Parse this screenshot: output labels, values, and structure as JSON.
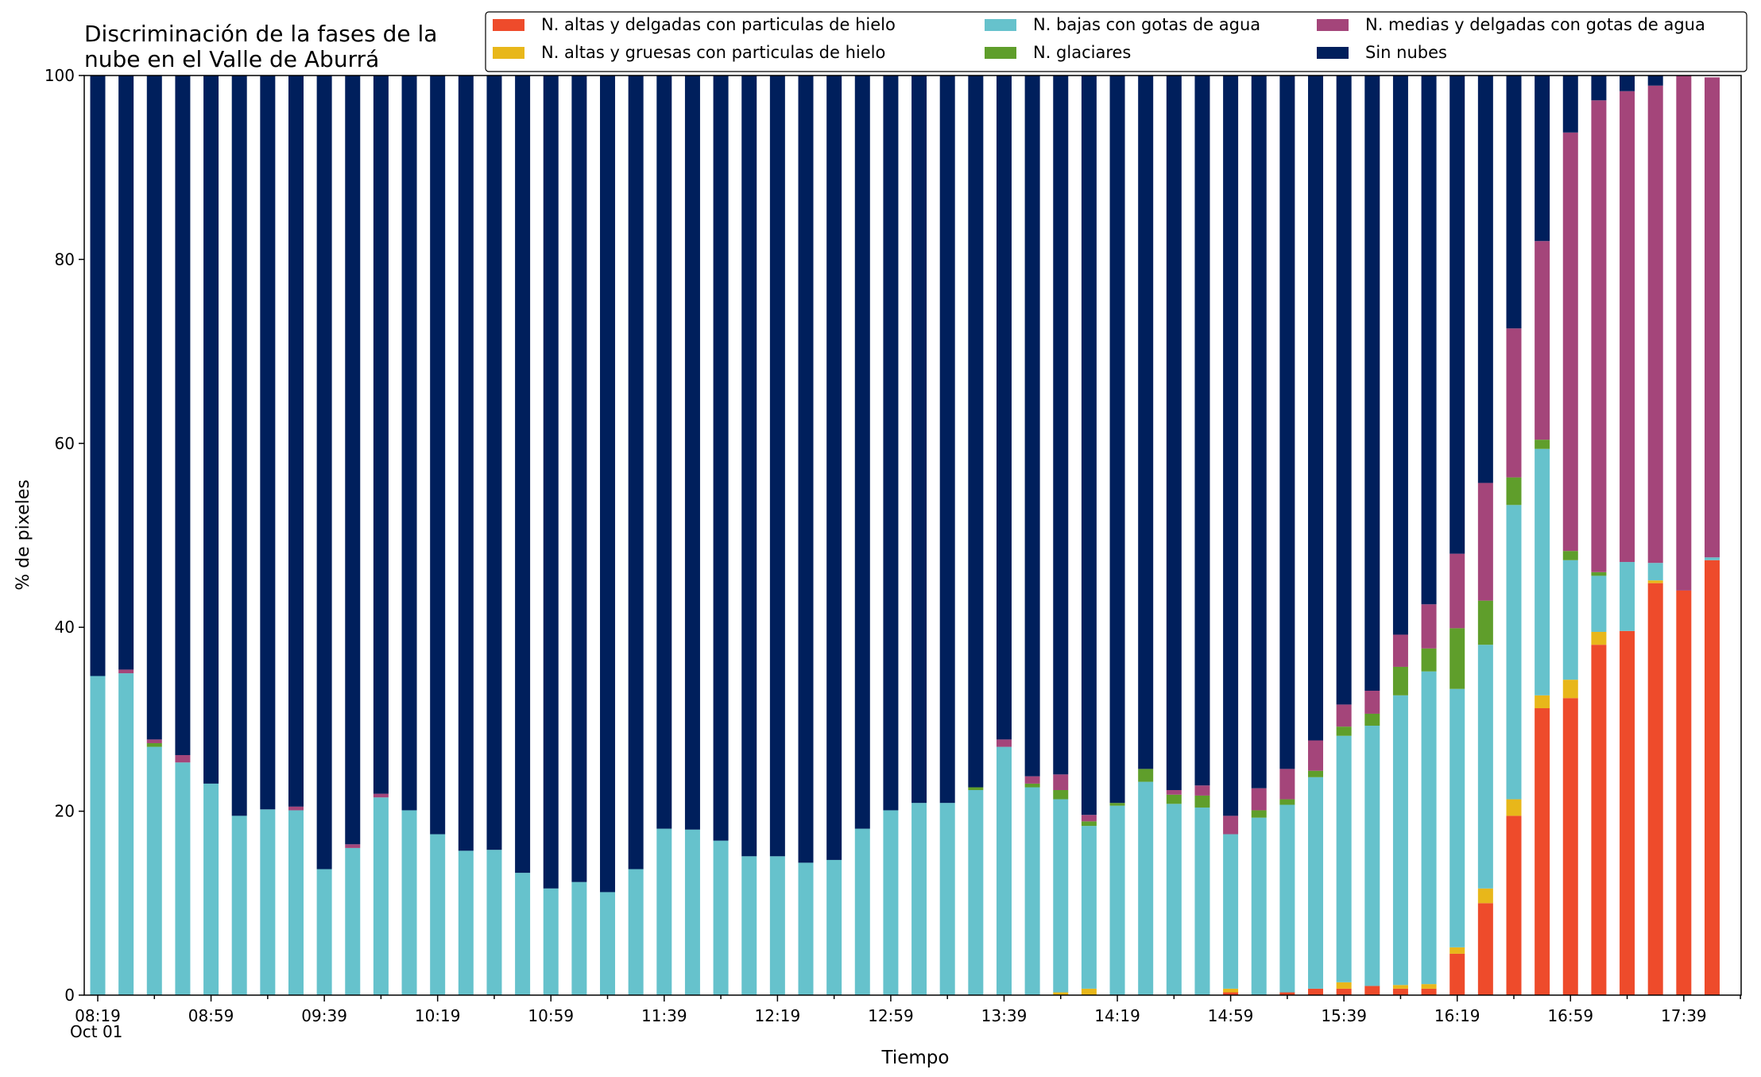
{
  "chart_data": {
    "type": "bar",
    "stacked": true,
    "title_lines": [
      "Discriminación de la fases de la",
      "nube en el Valle de Aburrá"
    ],
    "xlabel": "Tiempo",
    "ylabel": "% de pixeles",
    "ylim": [
      0,
      100
    ],
    "yticks": [
      0,
      20,
      40,
      60,
      80,
      100
    ],
    "grid": false,
    "legend_position": "top-right",
    "x_tick_labels": [
      "08:19",
      "08:59",
      "09:39",
      "10:19",
      "10:59",
      "11:39",
      "12:19",
      "12:59",
      "13:39",
      "14:19",
      "14:59",
      "15:39",
      "16:19",
      "16:59",
      "17:39"
    ],
    "x_date_label": "Oct 01",
    "categories": [
      "08:19",
      "08:29",
      "08:39",
      "08:49",
      "08:59",
      "09:09",
      "09:19",
      "09:29",
      "09:39",
      "09:49",
      "09:59",
      "10:09",
      "10:19",
      "10:29",
      "10:39",
      "10:49",
      "10:59",
      "11:09",
      "11:19",
      "11:29",
      "11:39",
      "11:49",
      "11:59",
      "12:09",
      "12:19",
      "12:29",
      "12:39",
      "12:49",
      "12:59",
      "13:09",
      "13:19",
      "13:29",
      "13:39",
      "13:49",
      "13:59",
      "14:09",
      "14:19",
      "14:29",
      "14:39",
      "14:49",
      "14:59",
      "15:09",
      "15:19",
      "15:29",
      "15:39",
      "15:49",
      "15:59",
      "16:09",
      "16:19",
      "16:29",
      "16:39",
      "16:49",
      "16:59",
      "17:09",
      "17:19",
      "17:29",
      "17:39",
      "17:49"
    ],
    "series": [
      {
        "name": "N. altas y delgadas con particulas de hielo",
        "color": "#ee4b2b",
        "values": [
          0,
          0,
          0,
          0,
          0,
          0,
          0,
          0,
          0,
          0,
          0,
          0,
          0,
          0,
          0,
          0,
          0,
          0,
          0,
          0,
          0,
          0,
          0,
          0,
          0,
          0,
          0,
          0,
          0,
          0,
          0,
          0,
          0,
          0,
          0,
          0,
          0,
          0,
          0,
          0,
          0.3,
          0,
          0.3,
          0.7,
          0.7,
          1.0,
          0.7,
          0.7,
          4.5,
          10,
          19.5,
          31.2,
          32.3,
          38.1,
          39.6,
          44.8,
          44.0,
          47.3
        ]
      },
      {
        "name": "N. altas y gruesas con particulas de hielo",
        "color": "#e8b71a",
        "values": [
          0,
          0,
          0,
          0,
          0,
          0,
          0,
          0,
          0,
          0,
          0,
          0,
          0,
          0,
          0,
          0,
          0,
          0,
          0,
          0,
          0,
          0,
          0,
          0,
          0,
          0,
          0,
          0,
          0,
          0,
          0,
          0,
          0,
          0,
          0.3,
          0.7,
          0,
          0,
          0,
          0,
          0.4,
          0,
          0,
          0,
          0.7,
          0,
          0.4,
          0.5,
          0.7,
          1.6,
          1.8,
          1.4,
          2.0,
          1.4,
          0,
          0.3,
          0,
          0
        ]
      },
      {
        "name": "N. bajas con gotas de agua",
        "color": "#66c2cc",
        "values": [
          34.7,
          35.0,
          27.0,
          25.3,
          23.0,
          19.5,
          20.2,
          20.1,
          13.7,
          16.0,
          21.5,
          20.1,
          17.5,
          15.7,
          15.8,
          13.3,
          11.6,
          12.3,
          11.2,
          13.7,
          18.1,
          18.0,
          16.8,
          15.1,
          15.1,
          14.4,
          14.7,
          18.1,
          20.1,
          20.9,
          20.9,
          22.3,
          27.0,
          22.6,
          21.0,
          17.7,
          20.6,
          23.2,
          20.8,
          20.4,
          16.8,
          19.3,
          20.4,
          23.0,
          26.8,
          28.3,
          31.5,
          34.0,
          28.1,
          26.5,
          32.0,
          26.8,
          13.0,
          6.1,
          7.5,
          1.9,
          0,
          0.3
        ]
      },
      {
        "name": "N. glaciares",
        "color": "#5f9e2b",
        "values": [
          0,
          0,
          0.4,
          0,
          0,
          0,
          0,
          0,
          0,
          0,
          0,
          0,
          0,
          0,
          0,
          0,
          0,
          0,
          0,
          0,
          0,
          0,
          0,
          0,
          0,
          0,
          0,
          0,
          0,
          0,
          0,
          0.3,
          0,
          0.4,
          1.0,
          0.5,
          0.3,
          1.4,
          1.0,
          1.3,
          0,
          0.8,
          0.6,
          0.7,
          1.0,
          1.3,
          3.1,
          2.5,
          6.6,
          4.8,
          3.0,
          1.0,
          1.0,
          0.4,
          0,
          0,
          0,
          0
        ]
      },
      {
        "name": "N. medias y delgadas con gotas de agua",
        "color": "#a4457a",
        "values": [
          0,
          0.4,
          0.4,
          0.8,
          0,
          0,
          0,
          0.4,
          0,
          0.4,
          0.4,
          0,
          0,
          0,
          0,
          0,
          0,
          0,
          0,
          0,
          0,
          0,
          0,
          0,
          0,
          0,
          0,
          0,
          0,
          0,
          0,
          0,
          0.8,
          0.8,
          1.7,
          0.7,
          0,
          0,
          0.5,
          1.1,
          2.0,
          2.4,
          3.3,
          3.3,
          2.4,
          2.5,
          3.5,
          4.8,
          8.1,
          12.8,
          16.2,
          21.6,
          45.5,
          51.3,
          51.2,
          51.9,
          56.0,
          52.2
        ]
      },
      {
        "name": "Sin nubes",
        "color": "#001f5c",
        "values": [
          65.3,
          64.6,
          72.2,
          73.9,
          77.0,
          80.5,
          79.8,
          79.5,
          86.3,
          83.6,
          78.1,
          79.9,
          82.5,
          84.3,
          84.2,
          86.7,
          88.4,
          87.7,
          88.8,
          86.3,
          81.9,
          82.0,
          83.2,
          84.9,
          84.9,
          85.6,
          85.3,
          81.9,
          79.9,
          79.1,
          79.1,
          77.4,
          72.2,
          76.2,
          76.0,
          80.4,
          79.1,
          75.4,
          77.7,
          77.2,
          80.5,
          77.5,
          75.4,
          72.3,
          68.4,
          66.9,
          60.8,
          57.5,
          52.0,
          44.3,
          27.5,
          18.0,
          6.2,
          2.7,
          1.7,
          1.1,
          0,
          0
        ]
      }
    ]
  }
}
